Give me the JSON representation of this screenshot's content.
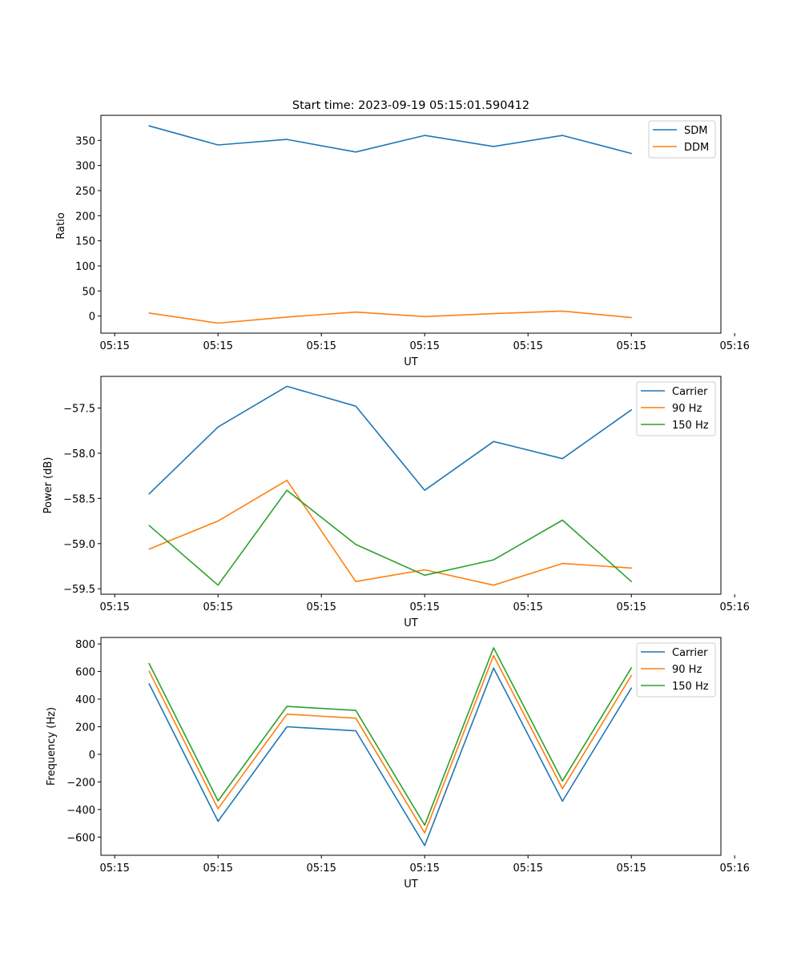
{
  "chart_data": [
    {
      "type": "line",
      "title": "Start time: 2023-09-19 05:15:01.590412",
      "xlabel": "UT",
      "ylabel": "Ratio",
      "x": [
        1,
        2,
        3,
        4,
        5,
        6,
        7,
        8
      ],
      "xlim": [
        0.3,
        9.3
      ],
      "xticks": [
        0.5,
        2,
        3.5,
        5,
        6.5,
        8,
        9.5
      ],
      "xtick_labels": [
        "05:15",
        "05:15",
        "05:15",
        "05:15",
        "05:15",
        "05:15",
        "05:16"
      ],
      "ylim": [
        -34,
        400
      ],
      "yticks": [
        0,
        50,
        100,
        150,
        200,
        250,
        300,
        350
      ],
      "ytick_labels": [
        "0",
        "50",
        "100",
        "150",
        "200",
        "250",
        "300",
        "350"
      ],
      "legend_position": "top-right",
      "series": [
        {
          "name": "SDM",
          "color": "#1f77b4",
          "values": [
            379,
            341,
            352,
            327,
            360,
            338,
            360,
            324
          ]
        },
        {
          "name": "DDM",
          "color": "#ff7f0e",
          "values": [
            6,
            -14,
            -2,
            8,
            -1,
            5,
            10,
            -3
          ]
        }
      ]
    },
    {
      "type": "line",
      "title": "",
      "xlabel": "UT",
      "ylabel": "Power (dB)",
      "x": [
        1,
        2,
        3,
        4,
        5,
        6,
        7,
        8
      ],
      "xlim": [
        0.3,
        9.3
      ],
      "xticks": [
        0.5,
        2,
        3.5,
        5,
        6.5,
        8,
        9.5
      ],
      "xtick_labels": [
        "05:15",
        "05:15",
        "05:15",
        "05:15",
        "05:15",
        "05:15",
        "05:16"
      ],
      "ylim": [
        -59.56,
        -57.15
      ],
      "yticks": [
        -57.5,
        -58.0,
        -58.5,
        -59.0,
        -59.5
      ],
      "ytick_labels": [
        "−57.5",
        "−58.0",
        "−58.5",
        "−59.0",
        "−59.5"
      ],
      "legend_position": "top-right",
      "series": [
        {
          "name": "Carrier",
          "color": "#1f77b4",
          "values": [
            -58.45,
            -57.71,
            -57.26,
            -57.48,
            -58.41,
            -57.87,
            -58.06,
            -57.52
          ]
        },
        {
          "name": "90 Hz",
          "color": "#ff7f0e",
          "values": [
            -59.06,
            -58.75,
            -58.3,
            -59.42,
            -59.29,
            -59.46,
            -59.22,
            -59.27
          ]
        },
        {
          "name": "150 Hz",
          "color": "#2ca02c",
          "values": [
            -58.8,
            -59.46,
            -58.41,
            -59.01,
            -59.35,
            -59.18,
            -58.74,
            -59.42
          ]
        }
      ]
    },
    {
      "type": "line",
      "title": "",
      "xlabel": "UT",
      "ylabel": "Frequency (Hz)",
      "x": [
        1,
        2,
        3,
        4,
        5,
        6,
        7,
        8
      ],
      "xlim": [
        0.3,
        9.3
      ],
      "xticks": [
        0.5,
        2,
        3.5,
        5,
        6.5,
        8,
        9.5
      ],
      "xtick_labels": [
        "05:15",
        "05:15",
        "05:15",
        "05:15",
        "05:15",
        "05:15",
        "05:16"
      ],
      "ylim": [
        -732,
        847
      ],
      "yticks": [
        800,
        600,
        400,
        200,
        0,
        -200,
        -400,
        -600
      ],
      "ytick_labels": [
        "800",
        "600",
        "400",
        "200",
        "0",
        "−200",
        "−400",
        "−600"
      ],
      "legend_position": "top-right",
      "series": [
        {
          "name": "Carrier",
          "color": "#1f77b4",
          "values": [
            511,
            -485,
            200,
            170,
            -661,
            625,
            -340,
            480
          ]
        },
        {
          "name": "90 Hz",
          "color": "#ff7f0e",
          "values": [
            602,
            -394,
            291,
            262,
            -570,
            716,
            -249,
            571
          ]
        },
        {
          "name": "150 Hz",
          "color": "#2ca02c",
          "values": [
            658,
            -338,
            347,
            318,
            -514,
            772,
            -193,
            627
          ]
        }
      ]
    }
  ]
}
